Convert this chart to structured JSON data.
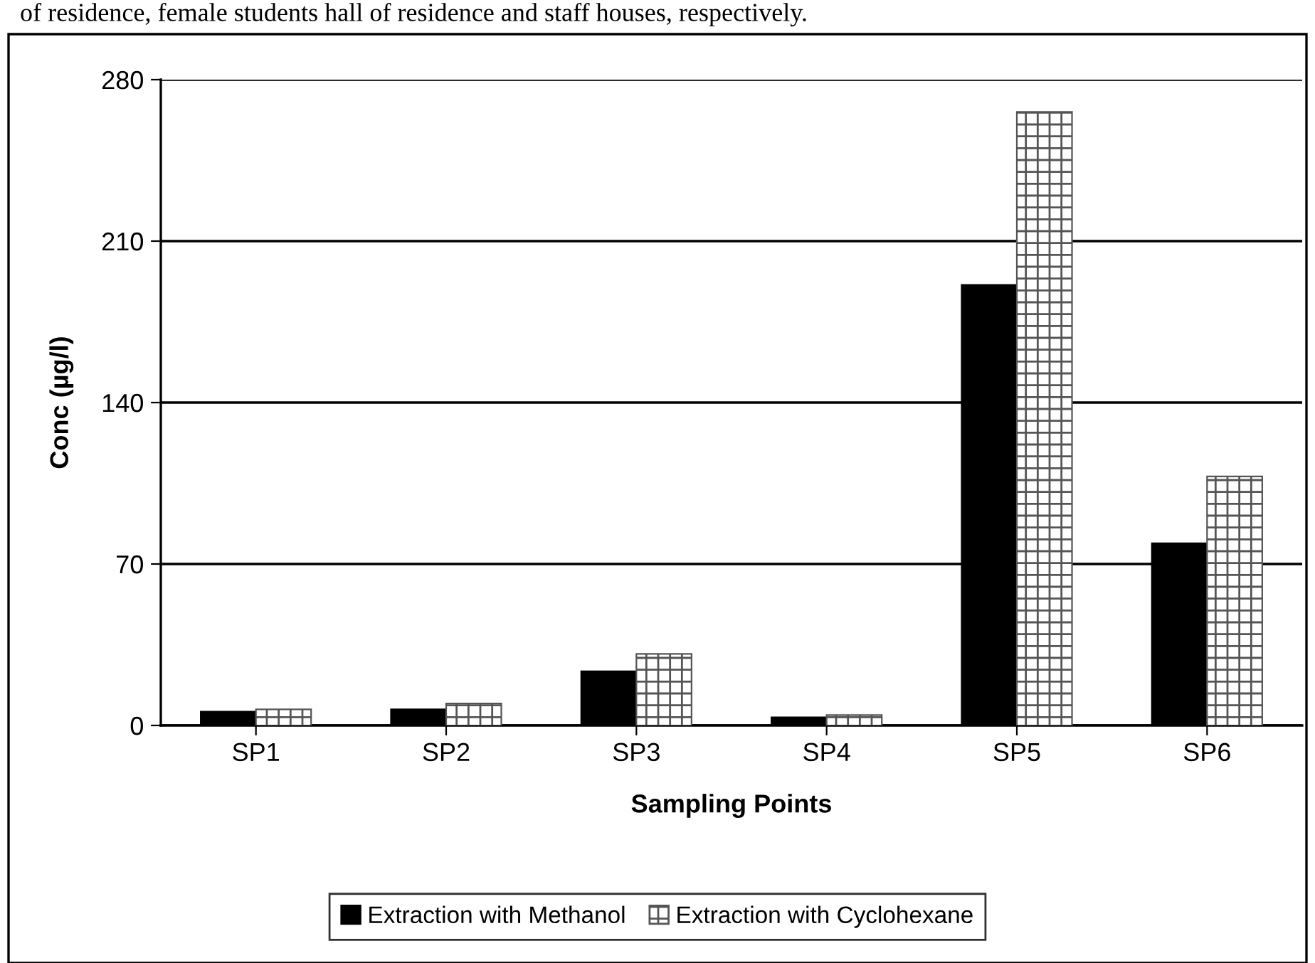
{
  "chart_data": {
    "type": "bar",
    "xlabel": "Sampling Points",
    "ylabel": "Conc (µg/l)",
    "categories": [
      "SP1",
      "SP2",
      "SP3",
      "SP4",
      "SP5",
      "SP6"
    ],
    "series": [
      {
        "name": "Extraction with Methanol",
        "color": "#000000",
        "values": [
          6,
          7,
          23.5,
          3.5,
          191,
          79
        ]
      },
      {
        "name": "Extraction with Cyclohexane",
        "color": "#555555",
        "values": [
          7,
          9.5,
          31,
          4.5,
          266,
          108
        ]
      }
    ],
    "ylim": [
      0,
      280
    ],
    "yticks": [
      0,
      70,
      140,
      210,
      280
    ],
    "grid": "y",
    "legend": "bottom",
    "annotations": [
      "of residence, female students hall of residence and staff houses, respectively."
    ]
  }
}
